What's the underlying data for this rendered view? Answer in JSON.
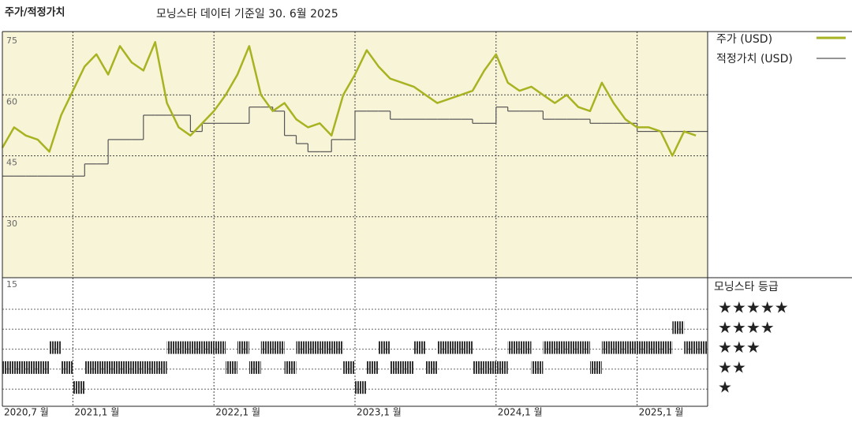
{
  "chart_data": {
    "type": "line",
    "title": "주가/적정가치",
    "subtitle": "모닝스타 데이터 기준일 30. 6월 2025",
    "x": [
      "2020-07",
      "2020-08",
      "2020-09",
      "2020-10",
      "2020-11",
      "2020-12",
      "2021-01",
      "2021-02",
      "2021-03",
      "2021-04",
      "2021-05",
      "2021-06",
      "2021-07",
      "2021-08",
      "2021-09",
      "2021-10",
      "2021-11",
      "2021-12",
      "2022-01",
      "2022-02",
      "2022-03",
      "2022-04",
      "2022-05",
      "2022-06",
      "2022-07",
      "2022-08",
      "2022-09",
      "2022-10",
      "2022-11",
      "2022-12",
      "2023-01",
      "2023-02",
      "2023-03",
      "2023-04",
      "2023-05",
      "2023-06",
      "2023-07",
      "2023-08",
      "2023-09",
      "2023-10",
      "2023-11",
      "2023-12",
      "2024-01",
      "2024-02",
      "2024-03",
      "2024-04",
      "2024-05",
      "2024-06",
      "2024-07",
      "2024-08",
      "2024-09",
      "2024-10",
      "2024-11",
      "2024-12",
      "2025-01",
      "2025-02",
      "2025-03",
      "2025-04",
      "2025-05",
      "2025-06"
    ],
    "series": [
      {
        "name": "주가 (USD)",
        "color": "#a8b321",
        "values": [
          47,
          52,
          50,
          49,
          46,
          55,
          61,
          67,
          70,
          65,
          72,
          68,
          66,
          73,
          58,
          52,
          50,
          53,
          56,
          60,
          65,
          72,
          60,
          56,
          58,
          54,
          52,
          53,
          50,
          60,
          65,
          71,
          67,
          64,
          63,
          62,
          60,
          58,
          59,
          60,
          61,
          66,
          70,
          63,
          61,
          62,
          60,
          58,
          60,
          57,
          56,
          63,
          58,
          54,
          52,
          52,
          51,
          45,
          51,
          50
        ]
      },
      {
        "name": "적정가치 (USD)",
        "color": "#555555",
        "values": [
          40,
          40,
          40,
          40,
          40,
          40,
          40,
          43,
          43,
          49,
          49,
          49,
          55,
          55,
          55,
          55,
          51,
          53,
          53,
          53,
          53,
          57,
          57,
          56,
          50,
          48,
          46,
          46,
          49,
          49,
          56,
          56,
          56,
          54,
          54,
          54,
          54,
          54,
          54,
          54,
          53,
          53,
          57,
          56,
          56,
          56,
          54,
          54,
          54,
          54,
          53,
          53,
          53,
          53,
          51,
          51,
          51,
          51,
          51,
          51
        ]
      }
    ],
    "ratings": {
      "name": "모닝스타 등급",
      "values": [
        2,
        2,
        2,
        2,
        3,
        2,
        1,
        2,
        2,
        2,
        2,
        2,
        2,
        2,
        3,
        3,
        3,
        3,
        3,
        2,
        3,
        2,
        3,
        3,
        2,
        3,
        3,
        3,
        3,
        2,
        1,
        2,
        3,
        2,
        2,
        3,
        2,
        3,
        3,
        3,
        2,
        2,
        2,
        3,
        3,
        2,
        3,
        3,
        3,
        3,
        2,
        3,
        3,
        3,
        3,
        3,
        3,
        4,
        3,
        3
      ],
      "levels": [
        {
          "value": 5,
          "label": "★★★★★"
        },
        {
          "value": 4,
          "label": "★★★★"
        },
        {
          "value": 3,
          "label": "★★★"
        },
        {
          "value": 2,
          "label": "★★"
        },
        {
          "value": 1,
          "label": "★"
        }
      ]
    },
    "xlim": [
      "2020-07",
      "2025-07"
    ],
    "xticks": [
      {
        "value": "2020-07",
        "label": "2020,7 월"
      },
      {
        "value": "2021-01",
        "label": "2021,1 월"
      },
      {
        "value": "2022-01",
        "label": "2022,1 월"
      },
      {
        "value": "2023-01",
        "label": "2023,1 월"
      },
      {
        "value": "2024-01",
        "label": "2024,1 월"
      },
      {
        "value": "2025-01",
        "label": "2025,1 월"
      }
    ],
    "ylim": [
      15,
      75
    ],
    "yticks": [
      75,
      60,
      45,
      30,
      15
    ],
    "grid": true
  }
}
